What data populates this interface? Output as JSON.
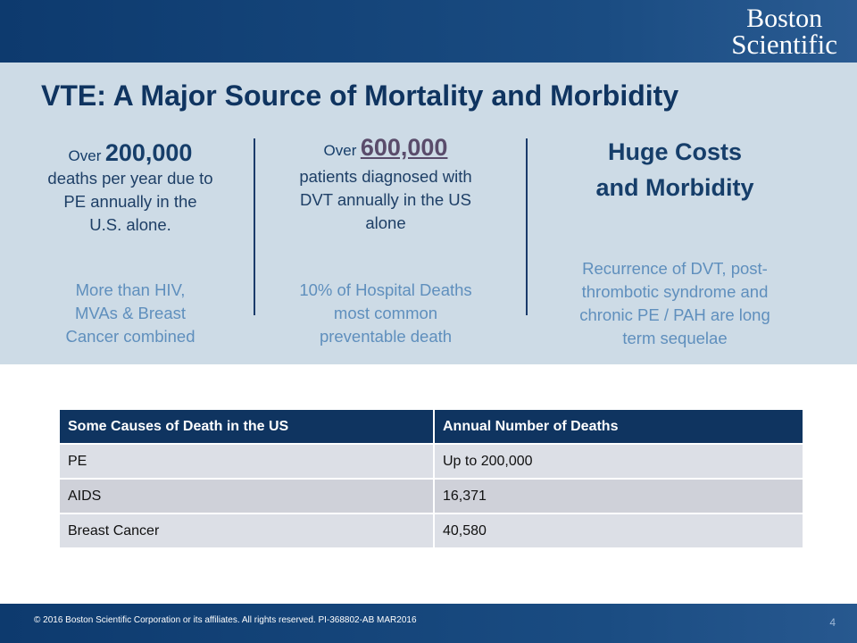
{
  "logo": {
    "line1": "Boston",
    "line2": "Scientific"
  },
  "title": "VTE: A Major Source of Mortality and Morbidity",
  "columns": [
    {
      "prefix": "Over",
      "big": "200,000",
      "lines": [
        "deaths per year due to",
        "PE annually in the",
        "U.S. alone."
      ],
      "sub": [
        "More than HIV,",
        "MVAs & Breast",
        "Cancer combined"
      ]
    },
    {
      "prefix": "Over",
      "big": "600,000",
      "lines": [
        "patients diagnosed with",
        "DVT annually in the US",
        "alone"
      ],
      "sub": [
        "10% of Hospital Deaths",
        "most common",
        "preventable death"
      ]
    },
    {
      "heading": [
        "Huge Costs",
        "and Morbidity"
      ],
      "sub": [
        "Recurrence of DVT, post-",
        "thrombotic syndrome and",
        "chronic PE / PAH are long",
        "term sequelae"
      ]
    }
  ],
  "table": {
    "headers": [
      "Some Causes of Death in the US",
      "Annual Number of Deaths"
    ],
    "rows": [
      [
        "PE",
        "Up to 200,000"
      ],
      [
        "AIDS",
        "16,371"
      ],
      [
        "Breast Cancer",
        "40,580"
      ]
    ]
  },
  "footer": {
    "copyright": "© 2016 Boston Scientific Corporation or its affiliates. All rights reserved. PI-368802-AB MAR2016",
    "page": "4"
  },
  "colors": {
    "navy": "#0f3460",
    "panel": "#cddbe6",
    "subtext": "#5f8fbd",
    "emphasis": "#5a4c6b"
  }
}
